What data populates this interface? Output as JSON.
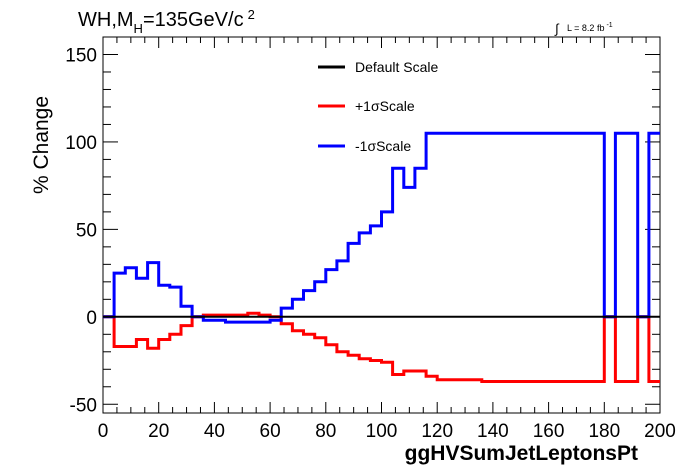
{
  "chart_data": {
    "type": "line",
    "title": "WH,M",
    "title_sub": "H",
    "title_rest": "=135GeV/c",
    "title_sup": "2",
    "luminosity": "L = 8.2 fb",
    "luminosity_sup": "-1",
    "luminosity_integral": "∫",
    "xlabel": "ggHVSumJetLeptonsPt",
    "ylabel": "% Change",
    "xlim": [
      0,
      200
    ],
    "ylim": [
      -55,
      160
    ],
    "xticks": [
      "0",
      "20",
      "40",
      "60",
      "80",
      "100",
      "120",
      "140",
      "160",
      "180",
      "200"
    ],
    "yticks": [
      "-50",
      "0",
      "50",
      "100",
      "150"
    ],
    "xtick_values": [
      0,
      20,
      40,
      60,
      80,
      100,
      120,
      140,
      160,
      180,
      200
    ],
    "ytick_values": [
      -50,
      0,
      50,
      100,
      150
    ],
    "grid": false,
    "legend_position": "top-center",
    "bin_edges": [
      0,
      4,
      8,
      12,
      16,
      20,
      24,
      28,
      32,
      36,
      40,
      44,
      48,
      52,
      56,
      60,
      64,
      68,
      72,
      76,
      80,
      84,
      88,
      92,
      96,
      100,
      104,
      108,
      112,
      116,
      120,
      124,
      128,
      132,
      136,
      140,
      144,
      148,
      152,
      156,
      160,
      164,
      168,
      172,
      176,
      180,
      184,
      188,
      192,
      196,
      200
    ],
    "series": [
      {
        "name": "Default Scale",
        "color": "#000000",
        "values": [
          0,
          0,
          0,
          0,
          0,
          0,
          0,
          0,
          0,
          0,
          0,
          0,
          0,
          0,
          0,
          0,
          0,
          0,
          0,
          0,
          0,
          0,
          0,
          0,
          0,
          0,
          0,
          0,
          0,
          0,
          0,
          0,
          0,
          0,
          0,
          0,
          0,
          0,
          0,
          0,
          0,
          0,
          0,
          0,
          0,
          0,
          0,
          0,
          0,
          0
        ]
      },
      {
        "name": "+1σScale",
        "color": "#ff0000",
        "values": [
          0,
          -17,
          -17,
          -13,
          -18,
          -13,
          -10,
          -5,
          0,
          1,
          1,
          1,
          1,
          2,
          1,
          0,
          -4,
          -8,
          -10,
          -12,
          -16,
          -20,
          -22,
          -24,
          -25,
          -26,
          -33,
          -31,
          -31,
          -34,
          -36,
          -36,
          -36,
          -36,
          -37,
          -37,
          -37,
          -37,
          -37,
          -37,
          -37,
          -37,
          -37,
          -37,
          -37,
          0,
          -37,
          -37,
          0,
          -37
        ]
      },
      {
        "name": "-1σScale",
        "color": "#0000ff",
        "values": [
          0,
          25,
          28,
          22,
          31,
          18,
          17,
          6,
          0,
          -2,
          -2,
          -3,
          -3,
          -3,
          -3,
          -2,
          5,
          10,
          15,
          20,
          27,
          32,
          42,
          48,
          52,
          60,
          85,
          74,
          85,
          105,
          105,
          105,
          105,
          105,
          105,
          105,
          105,
          105,
          105,
          105,
          105,
          105,
          105,
          105,
          105,
          0,
          105,
          105,
          0,
          105
        ]
      }
    ]
  }
}
